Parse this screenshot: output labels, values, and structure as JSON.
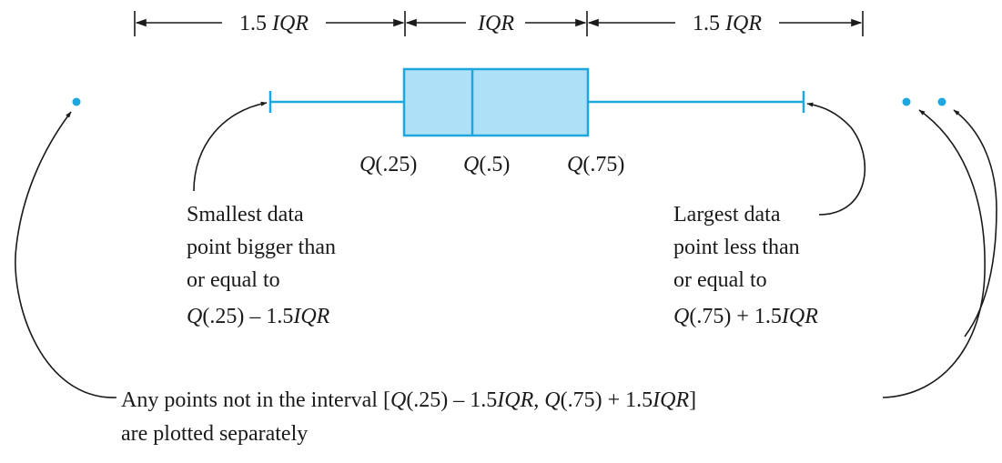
{
  "colors": {
    "box_fill": "#aee0f7",
    "box_stroke": "#1ea7de",
    "outlier": "#1ea7de",
    "ink": "#1a1a1a"
  },
  "scale": {
    "left_span": {
      "num": "1.5 ",
      "it": "IQR"
    },
    "mid_span": {
      "it": "IQR"
    },
    "right_span": {
      "num": "1.5 ",
      "it": "IQR"
    }
  },
  "quartiles": {
    "q25": {
      "it": "Q",
      "rest": "(.25)"
    },
    "q50": {
      "it": "Q",
      "rest": "(.5)"
    },
    "q75": {
      "it": "Q",
      "rest": "(.75)"
    }
  },
  "left_note": {
    "line1": "Smallest data",
    "line2": "point bigger than",
    "line3": "or equal to",
    "line4_q": "Q",
    "line4_mid": "(.25) – 1.5",
    "line4_iqr": "IQR"
  },
  "right_note": {
    "line1": "Largest data",
    "line2": "point less than",
    "line3": "or equal to",
    "line4_q": "Q",
    "line4_mid": "(.75) + 1.5",
    "line4_iqr": "IQR"
  },
  "bottom_note": {
    "p1": "Any points not in the interval [",
    "q1": "Q",
    "p2": "(.25) – 1.5",
    "iqr1": "IQR",
    "p3": ", ",
    "q2": "Q",
    "p4": "(.75) + 1.5",
    "iqr2": "IQR",
    "p5": "]",
    "line2": "are plotted separately"
  }
}
